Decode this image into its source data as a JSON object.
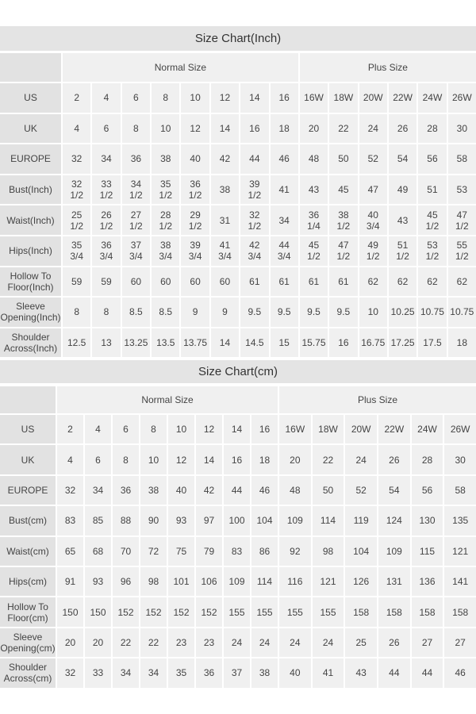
{
  "tables": [
    {
      "title": "Size Chart(Inch)",
      "groups": [
        "Normal Size",
        "Plus Size"
      ],
      "rows": [
        {
          "label": "US",
          "values": [
            "2",
            "4",
            "6",
            "8",
            "10",
            "12",
            "14",
            "16",
            "16W",
            "18W",
            "20W",
            "22W",
            "24W",
            "26W"
          ]
        },
        {
          "label": "UK",
          "values": [
            "4",
            "6",
            "8",
            "10",
            "12",
            "14",
            "16",
            "18",
            "20",
            "22",
            "24",
            "26",
            "28",
            "30"
          ]
        },
        {
          "label": "EUROPE",
          "values": [
            "32",
            "34",
            "36",
            "38",
            "40",
            "42",
            "44",
            "46",
            "48",
            "50",
            "52",
            "54",
            "56",
            "58"
          ]
        },
        {
          "label": "Bust(Inch)",
          "values": [
            "32\n1/2",
            "33\n1/2",
            "34\n1/2",
            "35\n1/2",
            "36\n1/2",
            "38",
            "39\n1/2",
            "41",
            "43",
            "45",
            "47",
            "49",
            "51",
            "53"
          ]
        },
        {
          "label": "Waist(Inch)",
          "values": [
            "25\n1/2",
            "26\n1/2",
            "27\n1/2",
            "28\n1/2",
            "29\n1/2",
            "31",
            "32\n1/2",
            "34",
            "36\n1/4",
            "38\n1/2",
            "40\n3/4",
            "43",
            "45\n1/2",
            "47\n1/2"
          ]
        },
        {
          "label": "Hips(Inch)",
          "values": [
            "35\n3/4",
            "36\n3/4",
            "37\n3/4",
            "38\n3/4",
            "39\n3/4",
            "41\n3/4",
            "42\n3/4",
            "44\n3/4",
            "45\n1/2",
            "47\n1/2",
            "49\n1/2",
            "51\n1/2",
            "53\n1/2",
            "55\n1/2"
          ]
        },
        {
          "label": "Hollow To\nFloor(Inch)",
          "values": [
            "59",
            "59",
            "60",
            "60",
            "60",
            "60",
            "61",
            "61",
            "61",
            "61",
            "62",
            "62",
            "62",
            "62"
          ]
        },
        {
          "label": "Sleeve\nOpening(Inch)",
          "values": [
            "8",
            "8",
            "8.5",
            "8.5",
            "9",
            "9",
            "9.5",
            "9.5",
            "9.5",
            "9.5",
            "10",
            "10.25",
            "10.75",
            "10.75"
          ]
        },
        {
          "label": "Shoulder\nAcross(Inch)",
          "values": [
            "12.5",
            "13",
            "13.25",
            "13.5",
            "13.75",
            "14",
            "14.5",
            "15",
            "15.75",
            "16",
            "16.75",
            "17.25",
            "17.5",
            "18"
          ]
        }
      ]
    },
    {
      "title": "Size Chart(cm)",
      "groups": [
        "Normal Size",
        "Plus Size"
      ],
      "rows": [
        {
          "label": "US",
          "values": [
            "2",
            "4",
            "6",
            "8",
            "10",
            "12",
            "14",
            "16",
            "16W",
            "18W",
            "20W",
            "22W",
            "24W",
            "26W"
          ]
        },
        {
          "label": "UK",
          "values": [
            "4",
            "6",
            "8",
            "10",
            "12",
            "14",
            "16",
            "18",
            "20",
            "22",
            "24",
            "26",
            "28",
            "30"
          ]
        },
        {
          "label": "EUROPE",
          "values": [
            "32",
            "34",
            "36",
            "38",
            "40",
            "42",
            "44",
            "46",
            "48",
            "50",
            "52",
            "54",
            "56",
            "58"
          ]
        },
        {
          "label": "Bust(cm)",
          "values": [
            "83",
            "85",
            "88",
            "90",
            "93",
            "97",
            "100",
            "104",
            "109",
            "114",
            "119",
            "124",
            "130",
            "135"
          ]
        },
        {
          "label": "Waist(cm)",
          "values": [
            "65",
            "68",
            "70",
            "72",
            "75",
            "79",
            "83",
            "86",
            "92",
            "98",
            "104",
            "109",
            "115",
            "121"
          ]
        },
        {
          "label": "Hips(cm)",
          "values": [
            "91",
            "93",
            "96",
            "98",
            "101",
            "106",
            "109",
            "114",
            "116",
            "121",
            "126",
            "131",
            "136",
            "141"
          ]
        },
        {
          "label": "Hollow To\nFloor(cm)",
          "values": [
            "150",
            "150",
            "152",
            "152",
            "152",
            "152",
            "155",
            "155",
            "155",
            "155",
            "158",
            "158",
            "158",
            "158"
          ]
        },
        {
          "label": "Sleeve\nOpening(cm)",
          "values": [
            "20",
            "20",
            "22",
            "22",
            "23",
            "23",
            "24",
            "24",
            "24",
            "24",
            "25",
            "26",
            "27",
            "27"
          ]
        },
        {
          "label": "Shoulder\nAcross(cm)",
          "values": [
            "32",
            "33",
            "34",
            "34",
            "35",
            "36",
            "37",
            "38",
            "40",
            "41",
            "43",
            "44",
            "44",
            "46"
          ]
        }
      ]
    }
  ]
}
